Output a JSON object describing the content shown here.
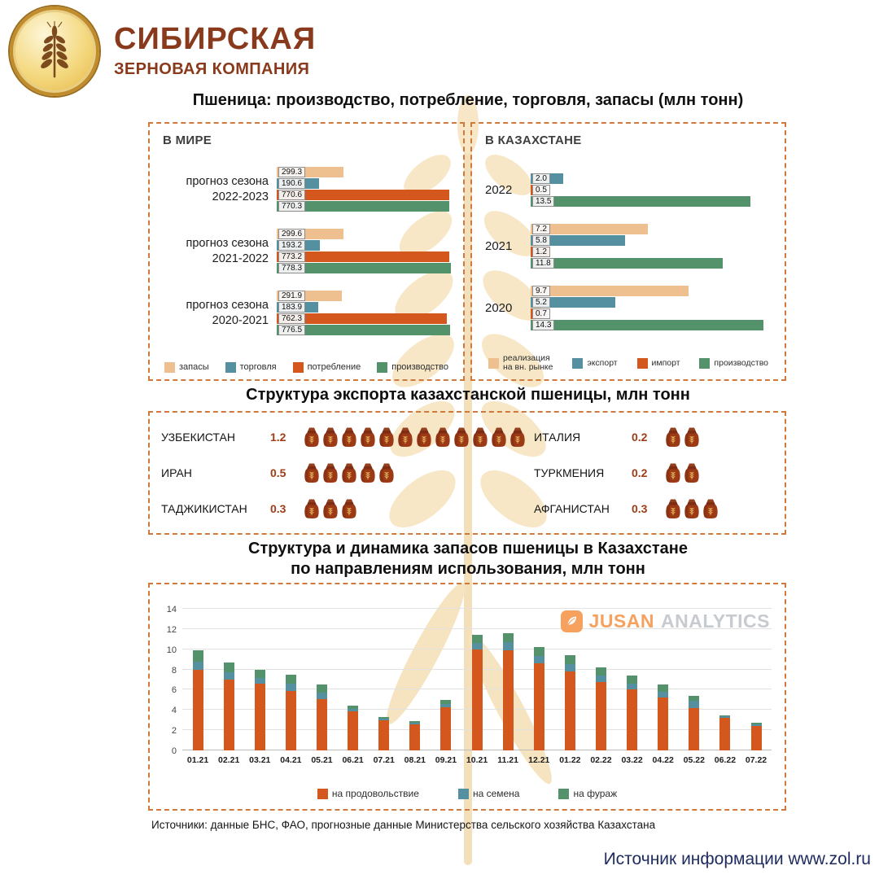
{
  "palette": {
    "tan": "#efc08f",
    "teal": "#5590a1",
    "orange": "#d4571e",
    "green": "#53926a"
  },
  "brand": {
    "line1": "СИБИРСКАЯ",
    "line2": "ЗЕРНОВАЯ КОМПАНИЯ"
  },
  "chart_data": [
    {
      "id": "world-wheat-balance",
      "type": "bar",
      "orientation": "horizontal",
      "shared_title": "Пшеница: производство, потребление, торговля, запасы (млн тонн)",
      "panel_label": "В МИРЕ",
      "xmax": 790,
      "groups": [
        {
          "label_lines": [
            "прогноз сезона",
            "2022-2023"
          ],
          "bars": [
            {
              "color": "tan",
              "value": 299.3,
              "label": "299.3"
            },
            {
              "color": "teal",
              "value": 190.6,
              "label": "190.6"
            },
            {
              "color": "orange",
              "value": 770.6,
              "label": "770.6"
            },
            {
              "color": "green",
              "value": 770.3,
              "label": "770.3"
            }
          ]
        },
        {
          "label_lines": [
            "прогноз сезона",
            "2021-2022"
          ],
          "bars": [
            {
              "color": "tan",
              "value": 299.6,
              "label": "299.6"
            },
            {
              "color": "teal",
              "value": 193.2,
              "label": "193.2"
            },
            {
              "color": "orange",
              "value": 773.2,
              "label": "773.2"
            },
            {
              "color": "green",
              "value": 778.3,
              "label": "778.3"
            }
          ]
        },
        {
          "label_lines": [
            "прогноз сезона",
            "2020-2021"
          ],
          "bars": [
            {
              "color": "tan",
              "value": 291.9,
              "label": "291.9"
            },
            {
              "color": "teal",
              "value": 183.9,
              "label": "183.9"
            },
            {
              "color": "orange",
              "value": 762.3,
              "label": "762.3"
            },
            {
              "color": "green",
              "value": 776.5,
              "label": "776.5"
            }
          ]
        }
      ],
      "legend": [
        {
          "color": "tan",
          "lines": [
            "запасы"
          ]
        },
        {
          "color": "teal",
          "lines": [
            "торговля"
          ]
        },
        {
          "color": "orange",
          "lines": [
            "потребление"
          ]
        },
        {
          "color": "green",
          "lines": [
            "производство"
          ]
        }
      ]
    },
    {
      "id": "kazakhstan-wheat-balance",
      "type": "bar",
      "orientation": "horizontal",
      "panel_label": "В КАЗАХСТАНЕ",
      "xmax": 15,
      "groups": [
        {
          "label_lines": [
            "2022"
          ],
          "bars": [
            {
              "color": "teal",
              "value": 2.0,
              "label": "2.0"
            },
            {
              "color": "orange",
              "value": 0.5,
              "label": "0.5"
            },
            {
              "color": "green",
              "value": 13.5,
              "label": "13.5"
            }
          ]
        },
        {
          "label_lines": [
            "2021"
          ],
          "bars": [
            {
              "color": "tan",
              "value": 7.2,
              "label": "7.2"
            },
            {
              "color": "teal",
              "value": 5.8,
              "label": "5.8"
            },
            {
              "color": "orange",
              "value": 1.2,
              "label": "1.2"
            },
            {
              "color": "green",
              "value": 11.8,
              "label": "11.8"
            }
          ]
        },
        {
          "label_lines": [
            "2020"
          ],
          "bars": [
            {
              "color": "tan",
              "value": 9.7,
              "label": "9.7"
            },
            {
              "color": "teal",
              "value": 5.2,
              "label": "5.2"
            },
            {
              "color": "orange",
              "value": 0.7,
              "label": "0.7"
            },
            {
              "color": "green",
              "value": 14.3,
              "label": "14.3"
            }
          ]
        }
      ],
      "legend": [
        {
          "color": "tan",
          "lines": [
            "реализация",
            "на вн. рынке"
          ]
        },
        {
          "color": "teal",
          "lines": [
            "экспорт"
          ]
        },
        {
          "color": "orange",
          "lines": [
            "импорт"
          ]
        },
        {
          "color": "green",
          "lines": [
            "производство"
          ]
        }
      ]
    },
    {
      "id": "kazakh-wheat-export-structure",
      "type": "pictogram",
      "title": "Структура экспорта казахстанской пшеницы, млн тонн",
      "sack_unit": 0.1,
      "columns": [
        [
          {
            "country": "УЗБЕКИСТАН",
            "value": "1.2",
            "sacks": 12
          },
          {
            "country": "ИРАН",
            "value": "0.5",
            "sacks": 5
          },
          {
            "country": "ТАДЖИКИСТАН",
            "value": "0.3",
            "sacks": 3
          }
        ],
        [
          {
            "country": "ИТАЛИЯ",
            "value": "0.2",
            "sacks": 2
          },
          {
            "country": "ТУРКМЕНИЯ",
            "value": "0.2",
            "sacks": 2
          },
          {
            "country": "АФГАНИСТАН",
            "value": "0.3",
            "sacks": 3
          }
        ]
      ]
    },
    {
      "id": "kazakh-wheat-stocks-dynamics",
      "type": "stacked-bar",
      "title_line1": "Структура и динамика запасов пшеницы в Казахстане",
      "title_line2": "по направлениям использования, млн тонн",
      "watermark": {
        "brand": "JUSAN",
        "word": "ANALYTICS"
      },
      "ylim": [
        0,
        14
      ],
      "yticks": [
        0,
        2,
        4,
        6,
        8,
        10,
        12,
        14
      ],
      "categories": [
        "01.21",
        "02.21",
        "03.21",
        "04.21",
        "05.21",
        "06.21",
        "07.21",
        "08.21",
        "09.21",
        "10.21",
        "11.21",
        "12.21",
        "01.22",
        "02.22",
        "03.22",
        "04.22",
        "05.22",
        "06.22",
        "07.22"
      ],
      "series": [
        {
          "name": "на продовольствие",
          "color": "orange",
          "values": [
            8.0,
            7.0,
            6.6,
            5.9,
            5.1,
            3.9,
            3.0,
            2.6,
            4.3,
            10.0,
            9.9,
            8.6,
            7.8,
            6.8,
            6.0,
            5.2,
            4.2,
            3.2,
            2.4
          ]
        },
        {
          "name": "на семена",
          "color": "teal",
          "values": [
            0.8,
            0.7,
            0.6,
            0.7,
            0.6,
            0.2,
            0.1,
            0.1,
            0.3,
            0.6,
            0.8,
            0.7,
            0.7,
            0.6,
            0.6,
            0.6,
            0.7,
            0.15,
            0.15
          ]
        },
        {
          "name": "на фураж",
          "color": "green",
          "values": [
            1.1,
            1.0,
            0.8,
            0.9,
            0.8,
            0.3,
            0.2,
            0.2,
            0.4,
            0.8,
            0.9,
            0.9,
            0.9,
            0.8,
            0.8,
            0.7,
            0.5,
            0.15,
            0.15
          ]
        }
      ],
      "legend": [
        {
          "color": "orange",
          "lines": [
            "на продовольствие"
          ]
        },
        {
          "color": "teal",
          "lines": [
            "на семена"
          ]
        },
        {
          "color": "green",
          "lines": [
            "на фураж"
          ]
        }
      ]
    }
  ],
  "footer": {
    "sources": "Источники: данные БНС, ФАО, прогнозные данные Министерства сельского хозяйства Казахстана",
    "credit": "Источник информации www.zol.ru"
  }
}
